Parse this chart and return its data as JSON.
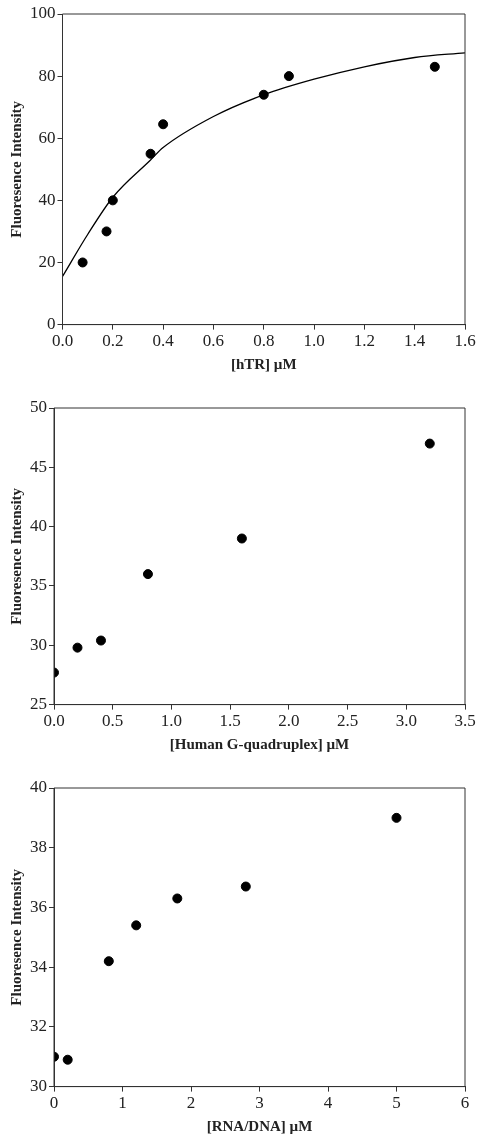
{
  "chart_data": [
    {
      "type": "scatter",
      "xlabel": "[hTR] µM",
      "ylabel": "Fluoresence Intensity",
      "xlim": [
        0,
        1.6
      ],
      "ylim": [
        0,
        100
      ],
      "xticks": [
        {
          "value": 0,
          "label": "0.0"
        },
        0.2,
        0.4,
        0.6,
        0.8,
        {
          "value": 1,
          "label": "1.0"
        },
        1.2,
        1.4,
        1.6
      ],
      "yticks": [
        0,
        20,
        40,
        60,
        80,
        100
      ],
      "grid": false,
      "legend": false,
      "marker": "circle",
      "series": [
        {
          "color": "#000000",
          "x": [
            0.08,
            0.175,
            0.2,
            0.35,
            0.4,
            0.8,
            0.9,
            1.48
          ],
          "values": [
            20,
            30,
            40,
            55,
            64.5,
            74,
            80,
            83
          ]
        },
        {
          "type": "line",
          "color": "#000000",
          "marker": "none",
          "line_style": "solid",
          "x": [
            0,
            0.1,
            0.2,
            0.35,
            0.4,
            0.6,
            0.8,
            1.0,
            1.2,
            1.4,
            1.6
          ],
          "values": [
            15.5,
            29,
            41,
            53,
            57,
            67,
            74,
            79,
            83,
            86,
            87.5
          ]
        }
      ]
    },
    {
      "type": "scatter",
      "xlabel": "[Human G-quadruplex] µM",
      "ylabel": "Fluoresence Intensity",
      "xlim": [
        0,
        3.5
      ],
      "ylim": [
        25,
        50
      ],
      "xticks": [
        {
          "value": 0,
          "label": "0.0"
        },
        0.5,
        {
          "value": 1,
          "label": "1.0"
        },
        1.5,
        {
          "value": 2,
          "label": "2.0"
        },
        2.5,
        {
          "value": 3,
          "label": "3.0"
        },
        3.5
      ],
      "yticks": [
        25,
        30,
        35,
        40,
        45,
        50
      ],
      "grid": false,
      "legend": false,
      "marker": "circle",
      "series": [
        {
          "color": "#000000",
          "x": [
            0,
            0.2,
            0.4,
            0.8,
            1.6,
            3.2
          ],
          "values": [
            27.7,
            29.8,
            30.4,
            36,
            39,
            47
          ]
        }
      ]
    },
    {
      "type": "scatter",
      "xlabel": "[RNA/DNA] µM",
      "ylabel": "Fluoresence Intensity",
      "xlim": [
        0,
        6
      ],
      "ylim": [
        30,
        40
      ],
      "xticks": [
        0,
        1,
        2,
        3,
        4,
        5,
        6
      ],
      "yticks": [
        30,
        32,
        34,
        36,
        38,
        40
      ],
      "grid": false,
      "legend": false,
      "marker": "circle",
      "series": [
        {
          "color": "#000000",
          "x": [
            0,
            0.2,
            0.8,
            1.2,
            1.8,
            2.8,
            5
          ],
          "values": [
            31,
            30.9,
            34.2,
            35.4,
            36.3,
            36.7,
            39
          ]
        }
      ]
    }
  ]
}
